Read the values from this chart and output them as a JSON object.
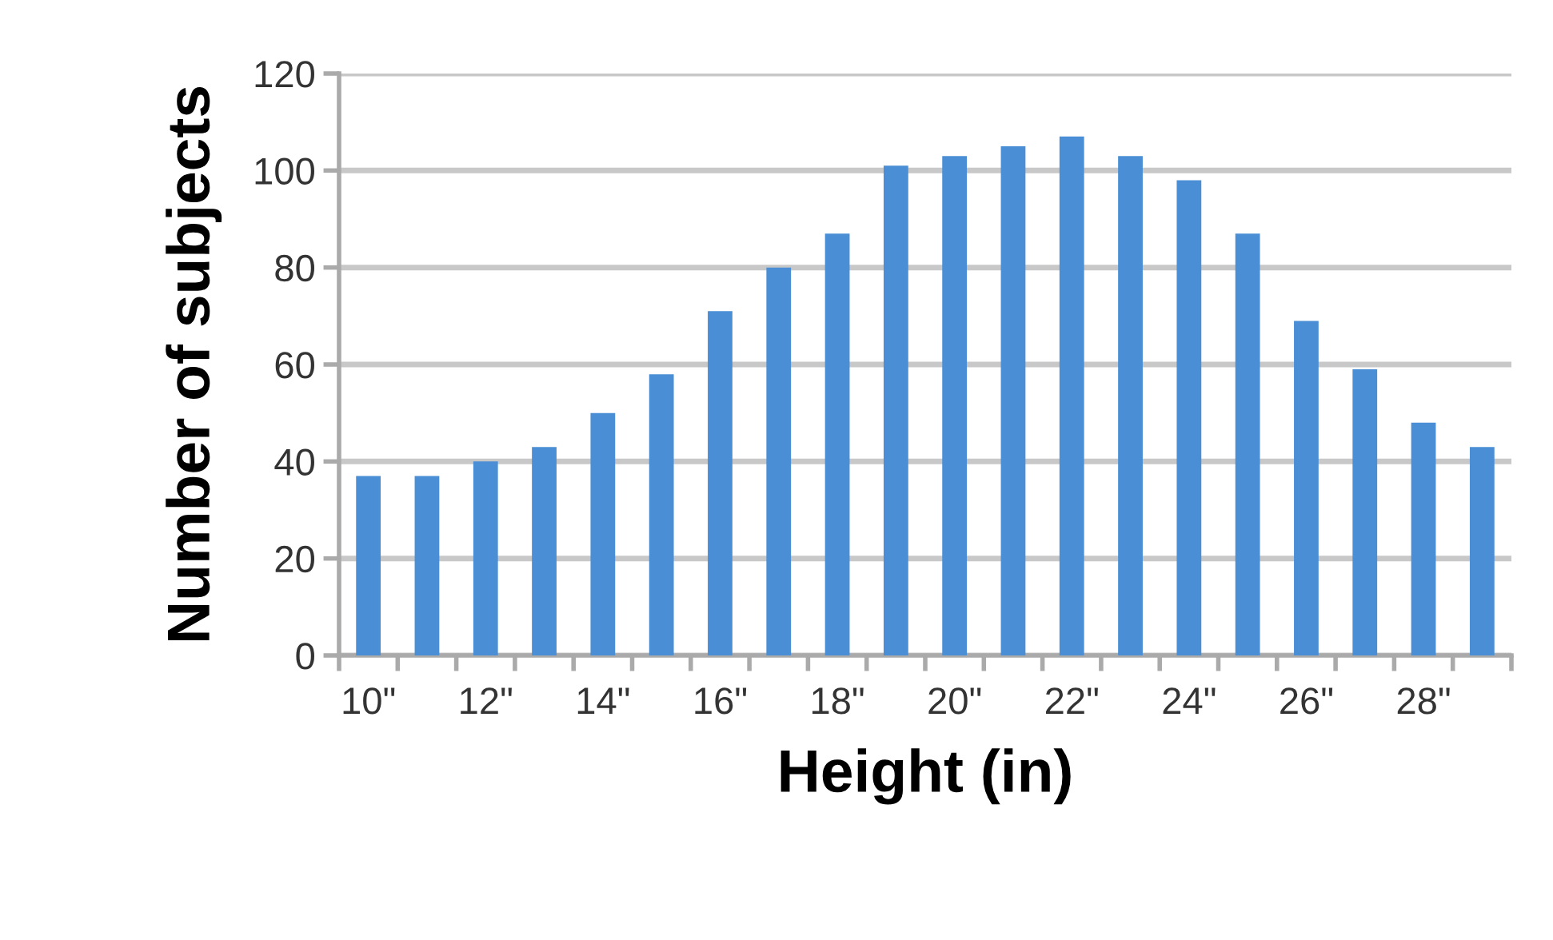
{
  "chart_data": {
    "type": "bar",
    "xlabel": "Height (in)",
    "ylabel": "Number of subjects",
    "categories": [
      "10\"",
      null,
      "12\"",
      null,
      "14\"",
      null,
      "16\"",
      null,
      "18\"",
      null,
      "20\"",
      null,
      "22\"",
      null,
      "24\"",
      null,
      "26\"",
      null,
      "28\"",
      null
    ],
    "values": [
      37,
      37,
      40,
      43,
      50,
      58,
      71,
      80,
      87,
      101,
      103,
      105,
      107,
      103,
      98,
      87,
      69,
      59,
      48,
      43
    ],
    "color": "#4a8fd6",
    "ylim": [
      0,
      120
    ],
    "yticks": [
      0,
      20,
      40,
      60,
      80,
      100,
      120
    ],
    "grid": "y"
  }
}
